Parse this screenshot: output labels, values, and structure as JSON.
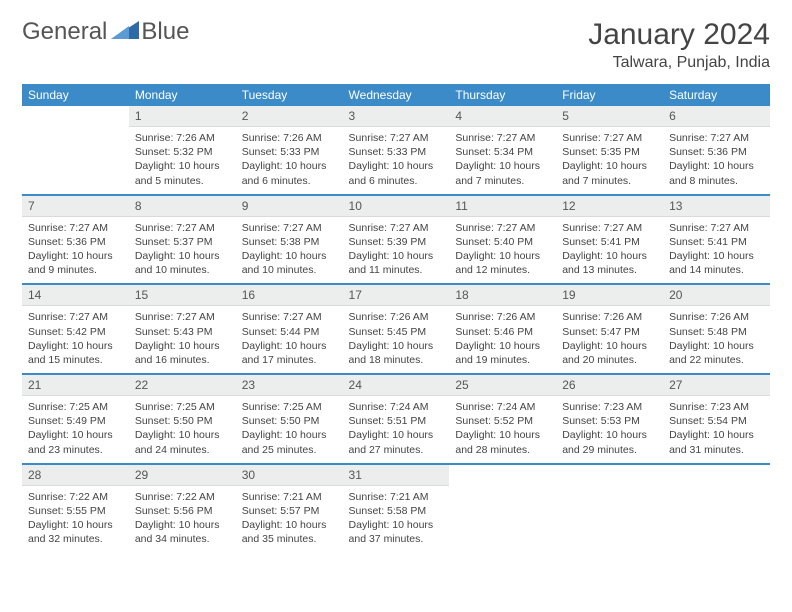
{
  "brand": {
    "part1": "General",
    "part2": "Blue"
  },
  "colors": {
    "header_bg": "#3b8bc9",
    "header_text": "#ffffff",
    "daynum_bg": "#eceeee",
    "text": "#444444",
    "logo_accent": "#2e6aa8"
  },
  "title": "January 2024",
  "location": "Talwara, Punjab, India",
  "weekdays": [
    "Sunday",
    "Monday",
    "Tuesday",
    "Wednesday",
    "Thursday",
    "Friday",
    "Saturday"
  ],
  "weeks": [
    [
      null,
      {
        "n": "1",
        "sr": "7:26 AM",
        "ss": "5:32 PM",
        "dl": "10 hours and 5 minutes."
      },
      {
        "n": "2",
        "sr": "7:26 AM",
        "ss": "5:33 PM",
        "dl": "10 hours and 6 minutes."
      },
      {
        "n": "3",
        "sr": "7:27 AM",
        "ss": "5:33 PM",
        "dl": "10 hours and 6 minutes."
      },
      {
        "n": "4",
        "sr": "7:27 AM",
        "ss": "5:34 PM",
        "dl": "10 hours and 7 minutes."
      },
      {
        "n": "5",
        "sr": "7:27 AM",
        "ss": "5:35 PM",
        "dl": "10 hours and 7 minutes."
      },
      {
        "n": "6",
        "sr": "7:27 AM",
        "ss": "5:36 PM",
        "dl": "10 hours and 8 minutes."
      }
    ],
    [
      {
        "n": "7",
        "sr": "7:27 AM",
        "ss": "5:36 PM",
        "dl": "10 hours and 9 minutes."
      },
      {
        "n": "8",
        "sr": "7:27 AM",
        "ss": "5:37 PM",
        "dl": "10 hours and 10 minutes."
      },
      {
        "n": "9",
        "sr": "7:27 AM",
        "ss": "5:38 PM",
        "dl": "10 hours and 10 minutes."
      },
      {
        "n": "10",
        "sr": "7:27 AM",
        "ss": "5:39 PM",
        "dl": "10 hours and 11 minutes."
      },
      {
        "n": "11",
        "sr": "7:27 AM",
        "ss": "5:40 PM",
        "dl": "10 hours and 12 minutes."
      },
      {
        "n": "12",
        "sr": "7:27 AM",
        "ss": "5:41 PM",
        "dl": "10 hours and 13 minutes."
      },
      {
        "n": "13",
        "sr": "7:27 AM",
        "ss": "5:41 PM",
        "dl": "10 hours and 14 minutes."
      }
    ],
    [
      {
        "n": "14",
        "sr": "7:27 AM",
        "ss": "5:42 PM",
        "dl": "10 hours and 15 minutes."
      },
      {
        "n": "15",
        "sr": "7:27 AM",
        "ss": "5:43 PM",
        "dl": "10 hours and 16 minutes."
      },
      {
        "n": "16",
        "sr": "7:27 AM",
        "ss": "5:44 PM",
        "dl": "10 hours and 17 minutes."
      },
      {
        "n": "17",
        "sr": "7:26 AM",
        "ss": "5:45 PM",
        "dl": "10 hours and 18 minutes."
      },
      {
        "n": "18",
        "sr": "7:26 AM",
        "ss": "5:46 PM",
        "dl": "10 hours and 19 minutes."
      },
      {
        "n": "19",
        "sr": "7:26 AM",
        "ss": "5:47 PM",
        "dl": "10 hours and 20 minutes."
      },
      {
        "n": "20",
        "sr": "7:26 AM",
        "ss": "5:48 PM",
        "dl": "10 hours and 22 minutes."
      }
    ],
    [
      {
        "n": "21",
        "sr": "7:25 AM",
        "ss": "5:49 PM",
        "dl": "10 hours and 23 minutes."
      },
      {
        "n": "22",
        "sr": "7:25 AM",
        "ss": "5:50 PM",
        "dl": "10 hours and 24 minutes."
      },
      {
        "n": "23",
        "sr": "7:25 AM",
        "ss": "5:50 PM",
        "dl": "10 hours and 25 minutes."
      },
      {
        "n": "24",
        "sr": "7:24 AM",
        "ss": "5:51 PM",
        "dl": "10 hours and 27 minutes."
      },
      {
        "n": "25",
        "sr": "7:24 AM",
        "ss": "5:52 PM",
        "dl": "10 hours and 28 minutes."
      },
      {
        "n": "26",
        "sr": "7:23 AM",
        "ss": "5:53 PM",
        "dl": "10 hours and 29 minutes."
      },
      {
        "n": "27",
        "sr": "7:23 AM",
        "ss": "5:54 PM",
        "dl": "10 hours and 31 minutes."
      }
    ],
    [
      {
        "n": "28",
        "sr": "7:22 AM",
        "ss": "5:55 PM",
        "dl": "10 hours and 32 minutes."
      },
      {
        "n": "29",
        "sr": "7:22 AM",
        "ss": "5:56 PM",
        "dl": "10 hours and 34 minutes."
      },
      {
        "n": "30",
        "sr": "7:21 AM",
        "ss": "5:57 PM",
        "dl": "10 hours and 35 minutes."
      },
      {
        "n": "31",
        "sr": "7:21 AM",
        "ss": "5:58 PM",
        "dl": "10 hours and 37 minutes."
      },
      null,
      null,
      null
    ]
  ],
  "labels": {
    "sunrise": "Sunrise: ",
    "sunset": "Sunset: ",
    "daylight": "Daylight: "
  }
}
